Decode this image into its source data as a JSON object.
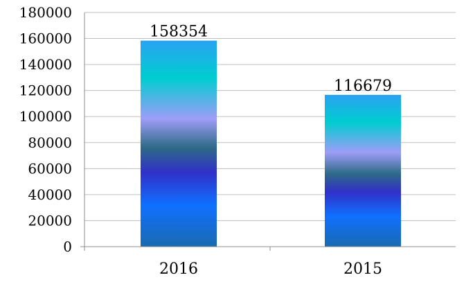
{
  "chart_data": {
    "type": "bar",
    "categories": [
      "2016",
      "2015"
    ],
    "values": [
      158354,
      116679
    ],
    "data_labels": [
      "158354",
      "116679"
    ],
    "ylim": [
      0,
      180000
    ],
    "y_ticks": [
      0,
      20000,
      40000,
      60000,
      80000,
      100000,
      120000,
      140000,
      160000,
      180000
    ],
    "y_tick_labels": [
      "0",
      "20000",
      "40000",
      "60000",
      "80000",
      "100000",
      "120000",
      "140000",
      "160000",
      "180000"
    ],
    "grid": true,
    "legend": "none",
    "bar_gradient": [
      "#2aa2f2",
      "#00cdd0",
      "#9d9df7",
      "#2e6a87",
      "#3030c8",
      "#1070ff",
      "#1a6ab0"
    ]
  }
}
